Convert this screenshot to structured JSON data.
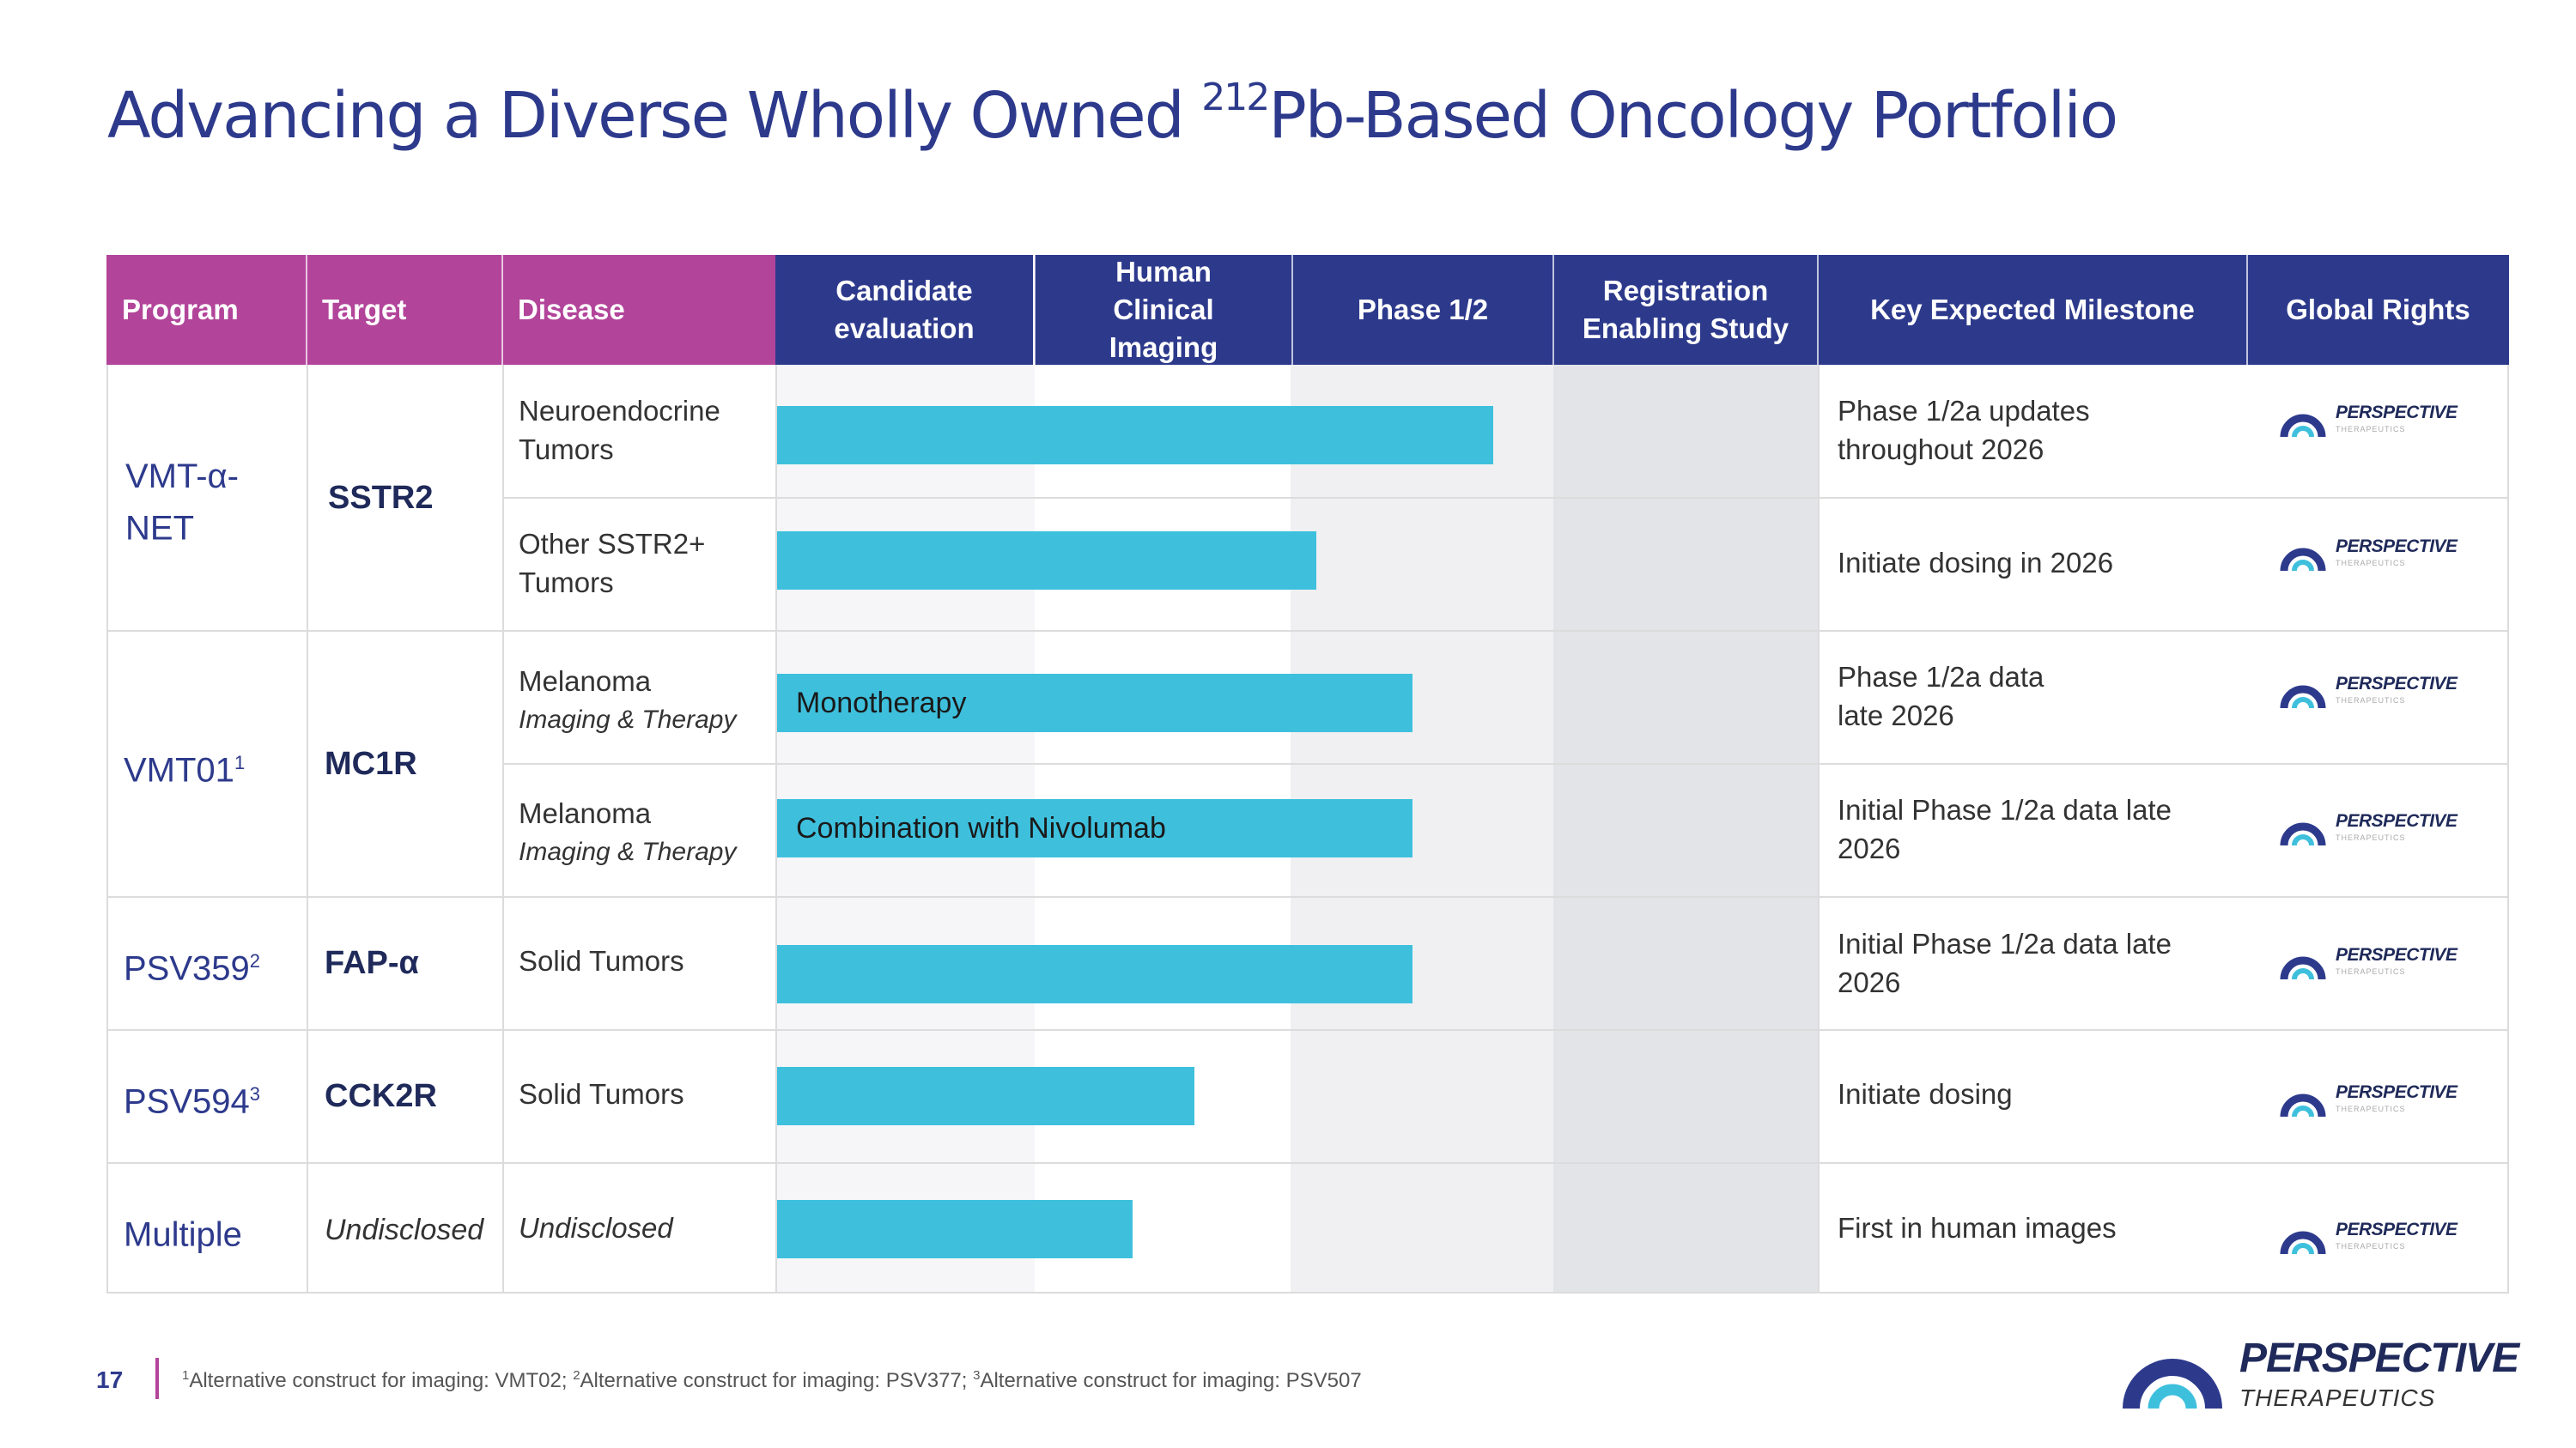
{
  "slide": {
    "title_pre": "Advancing a Diverse Wholly Owned ",
    "title_sup": "212",
    "title_post": "Pb-Based Oncology Portfolio",
    "page_number": "17",
    "footnote": [
      {
        "sup": "1",
        "text": "Alternative construct for imaging: VMT02; "
      },
      {
        "sup": "2",
        "text": "Alternative construct for imaging: PSV377; "
      },
      {
        "sup": "3",
        "text": "Alternative construct for imaging: PSV507"
      }
    ]
  },
  "header": {
    "program": "Program",
    "target": "Target",
    "disease": "Disease",
    "stages": [
      "Candidate evaluation",
      "Human Clinical Imaging",
      "Phase 1/2",
      "Registration Enabling Study"
    ],
    "milestone": "Key Expected Milestone",
    "rights": "Global Rights"
  },
  "groups": [
    {
      "program": "VMT-α-NET",
      "sup": "",
      "target": "SSTR2"
    },
    {
      "program": "VMT01",
      "sup": "1",
      "target": "MC1R"
    },
    {
      "program": "PSV359",
      "sup": "2",
      "target": "FAP-α"
    },
    {
      "program": "PSV594",
      "sup": "3",
      "target": "CCK2R"
    },
    {
      "program": "Multiple",
      "sup": "",
      "target": "Undisclosed"
    }
  ],
  "rows": [
    {
      "disease": "Neuroendocrine Tumors",
      "disease_sub": "",
      "bar_label": "",
      "progress_stages": 2.76,
      "milestone": "Phase 1/2a updates throughout 2026"
    },
    {
      "disease": "Other SSTR2+ Tumors",
      "disease_sub": "",
      "bar_label": "",
      "progress_stages": 2.08,
      "milestone": "Initiate dosing in 2026"
    },
    {
      "disease": "Melanoma",
      "disease_sub": "Imaging & Therapy",
      "bar_label": "Monotherapy",
      "progress_stages": 2.45,
      "milestone": "Phase 1/2a data late 2026"
    },
    {
      "disease": "Melanoma",
      "disease_sub": "Imaging & Therapy",
      "bar_label": "Combination with Nivolumab",
      "progress_stages": 2.45,
      "milestone": "Initial Phase 1/2a data late 2026"
    },
    {
      "disease": "Solid Tumors",
      "disease_sub": "",
      "bar_label": "",
      "progress_stages": 2.45,
      "milestone": "Initial Phase 1/2a data late 2026"
    },
    {
      "disease": "Solid Tumors",
      "disease_sub": "",
      "bar_label": "",
      "progress_stages": 1.61,
      "milestone": "Initiate dosing"
    },
    {
      "disease": "Undisclosed",
      "disease_sub": "",
      "bar_label": "",
      "progress_stages": 1.37,
      "milestone": "First in human images"
    }
  ],
  "rights_logo": {
    "text": "PERSPECTIVE",
    "sub": "THERAPEUTICS"
  },
  "brand_logo": {
    "name": "PERSPECTIVE",
    "sub": "THERAPEUTICS"
  },
  "colors": {
    "navy": "#2d3a8c",
    "magenta": "#b2449a",
    "bar": "#3ec0dd"
  }
}
